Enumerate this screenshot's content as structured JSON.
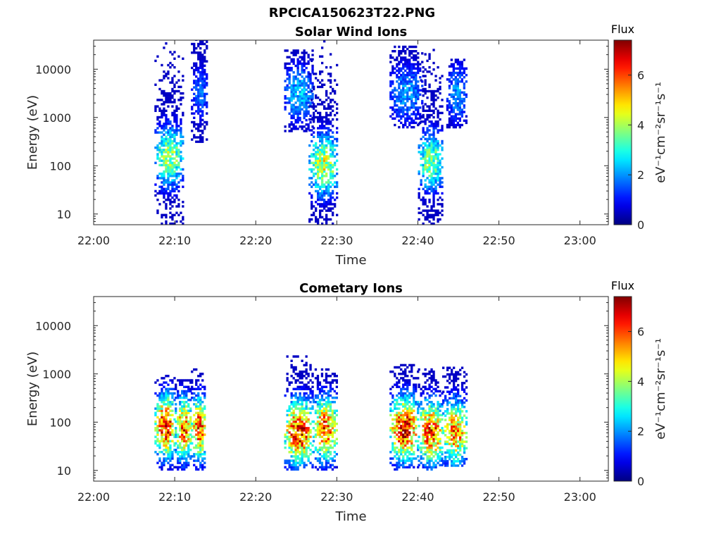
{
  "figure": {
    "title": "RPCICA150623T22.PNG"
  },
  "chart_data": [
    {
      "type": "heatmap",
      "title": "Solar Wind Ions",
      "xlabel": "Time",
      "ylabel": "Energy (eV)",
      "x_ticks": [
        "22:00",
        "22:10",
        "22:20",
        "22:30",
        "22:40",
        "22:50",
        "23:00"
      ],
      "xlim_minutes": [
        0,
        63.5
      ],
      "y_scale": "log",
      "y_ticks": [
        "10",
        "100",
        "1000",
        "10000"
      ],
      "ylim": [
        6,
        40000
      ],
      "colorbar": {
        "title": "Flux",
        "label": "eV⁻¹cm⁻²sr⁻¹s⁻¹",
        "ticks": [
          "0",
          "2",
          "4",
          "6"
        ],
        "range": [
          0,
          7.4
        ],
        "colormap": "jet"
      },
      "bursts": [
        {
          "t_start": 7.5,
          "t_end": 11.0,
          "e_min": 6,
          "e_max": 40000,
          "peak_e": 150,
          "peak_flux": 4.2
        },
        {
          "t_start": 12.0,
          "t_end": 14.0,
          "e_min": 300,
          "e_max": 40000,
          "peak_e": 3000,
          "peak_flux": 1.8
        },
        {
          "t_start": 23.5,
          "t_end": 27.0,
          "e_min": 500,
          "e_max": 25000,
          "peak_e": 3000,
          "peak_flux": 2.5
        },
        {
          "t_start": 26.5,
          "t_end": 30.0,
          "e_min": 6,
          "e_max": 40000,
          "peak_e": 100,
          "peak_flux": 4.6
        },
        {
          "t_start": 36.5,
          "t_end": 40.5,
          "e_min": 600,
          "e_max": 30000,
          "peak_e": 3000,
          "peak_flux": 2.2
        },
        {
          "t_start": 40.0,
          "t_end": 43.0,
          "e_min": 6,
          "e_max": 40000,
          "peak_e": 120,
          "peak_flux": 4.0
        },
        {
          "t_start": 43.5,
          "t_end": 46.0,
          "e_min": 600,
          "e_max": 15000,
          "peak_e": 3000,
          "peak_flux": 2.2
        }
      ]
    },
    {
      "type": "heatmap",
      "title": "Cometary Ions",
      "xlabel": "Time",
      "ylabel": "Energy (eV)",
      "x_ticks": [
        "22:00",
        "22:10",
        "22:20",
        "22:30",
        "22:40",
        "22:50",
        "23:00"
      ],
      "xlim_minutes": [
        0,
        63.5
      ],
      "y_scale": "log",
      "y_ticks": [
        "10",
        "100",
        "1000",
        "10000"
      ],
      "ylim": [
        6,
        40000
      ],
      "colorbar": {
        "title": "Flux",
        "label": "eV⁻¹cm⁻²sr⁻¹s⁻¹",
        "ticks": [
          "0",
          "2",
          "4",
          "6"
        ],
        "range": [
          0,
          7.4
        ],
        "colormap": "jet"
      },
      "bursts": [
        {
          "t_start": 7.5,
          "t_end": 10.0,
          "e_min": 10,
          "e_max": 900,
          "peak_e": 80,
          "peak_flux": 6.8
        },
        {
          "t_start": 10.0,
          "t_end": 12.0,
          "e_min": 10,
          "e_max": 700,
          "peak_e": 70,
          "peak_flux": 6.2
        },
        {
          "t_start": 12.0,
          "t_end": 13.8,
          "e_min": 10,
          "e_max": 1300,
          "peak_e": 70,
          "peak_flux": 6.5
        },
        {
          "t_start": 23.5,
          "t_end": 27.0,
          "e_min": 10,
          "e_max": 2300,
          "peak_e": 60,
          "peak_flux": 7.0
        },
        {
          "t_start": 27.0,
          "t_end": 30.0,
          "e_min": 10,
          "e_max": 1300,
          "peak_e": 70,
          "peak_flux": 6.4
        },
        {
          "t_start": 36.5,
          "t_end": 40.0,
          "e_min": 10,
          "e_max": 1500,
          "peak_e": 70,
          "peak_flux": 7.2
        },
        {
          "t_start": 40.0,
          "t_end": 43.0,
          "e_min": 10,
          "e_max": 1300,
          "peak_e": 60,
          "peak_flux": 6.6
        },
        {
          "t_start": 43.0,
          "t_end": 46.0,
          "e_min": 12,
          "e_max": 1300,
          "peak_e": 60,
          "peak_flux": 6.0
        }
      ]
    }
  ]
}
